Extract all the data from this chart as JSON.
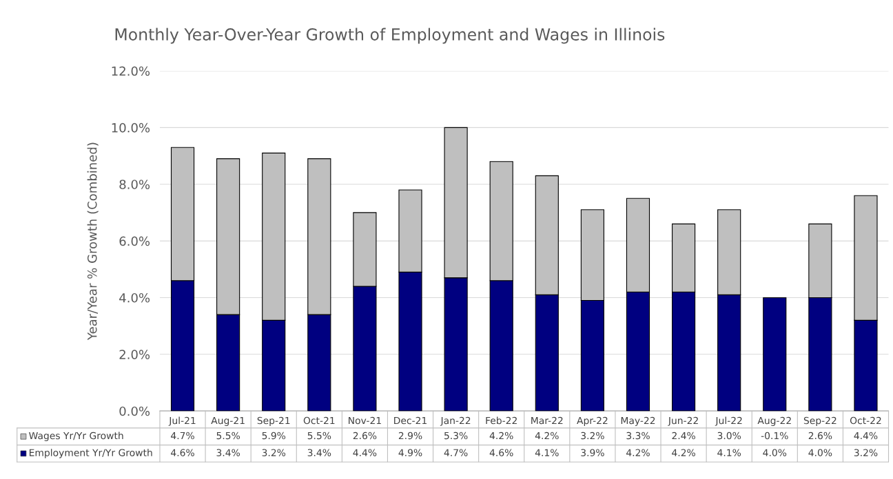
{
  "chart_data": {
    "type": "bar",
    "title": "Monthly Year-Over-Year Growth of Employment and Wages in Illinois",
    "ylabel": "Year/Year % Growth (Combined)",
    "categories": [
      "Jul-21",
      "Aug-21",
      "Sep-21",
      "Oct-21",
      "Nov-21",
      "Dec-21",
      "Jan-22",
      "Feb-22",
      "Mar-22",
      "Apr-22",
      "May-22",
      "Jun-22",
      "Jul-22",
      "Aug-22",
      "Sep-22",
      "Oct-22"
    ],
    "stacked": true,
    "series": [
      {
        "name": "Employment Yr/Yr Growth",
        "color": "#000080",
        "values": [
          4.6,
          3.4,
          3.2,
          3.4,
          4.4,
          4.9,
          4.7,
          4.6,
          4.1,
          3.9,
          4.2,
          4.2,
          4.1,
          4.0,
          4.0,
          3.2
        ],
        "value_labels": [
          "4.6%",
          "3.4%",
          "3.2%",
          "3.4%",
          "4.4%",
          "4.9%",
          "4.7%",
          "4.6%",
          "4.1%",
          "3.9%",
          "4.2%",
          "4.2%",
          "4.1%",
          "4.0%",
          "4.0%",
          "3.2%"
        ]
      },
      {
        "name": "Wages Yr/Yr Growth",
        "color": "#bfbfbf",
        "values": [
          4.7,
          5.5,
          5.9,
          5.5,
          2.6,
          2.9,
          5.3,
          4.2,
          4.2,
          3.2,
          3.3,
          2.4,
          3.0,
          null,
          2.6,
          4.4
        ],
        "value_labels": [
          "4.7%",
          "5.5%",
          "5.9%",
          "5.5%",
          "2.6%",
          "2.9%",
          "5.3%",
          "4.2%",
          "4.2%",
          "3.2%",
          "3.3%",
          "2.4%",
          "3.0%",
          "-0.1%",
          "2.6%",
          "4.4%"
        ]
      }
    ],
    "ylim": [
      0,
      12
    ],
    "yticks": [
      {
        "value": 0,
        "label": "0.0%"
      },
      {
        "value": 2,
        "label": "2.0%"
      },
      {
        "value": 4,
        "label": "4.0%"
      },
      {
        "value": 6,
        "label": "6.0%"
      },
      {
        "value": 8,
        "label": "8.0%"
      },
      {
        "value": 10,
        "label": "10.0%"
      },
      {
        "value": 12,
        "label": "12.0%"
      }
    ],
    "grid": "y",
    "legend": "bottom"
  }
}
